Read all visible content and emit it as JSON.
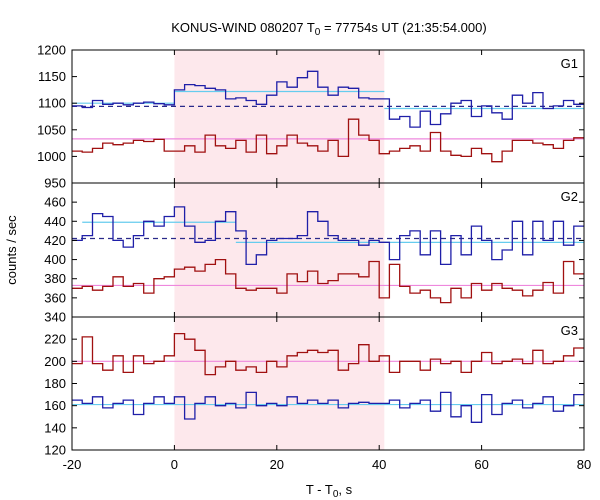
{
  "chart_data": {
    "type": "line",
    "title": "KONUS-WIND 080207 T",
    "title_sub": "0",
    "title_rest": " = 77754s UT (21:35:54.000)",
    "xlabel": "T - T",
    "xlabel_sub": "0",
    "xlabel_rest": ", s",
    "ylabel": "counts / sec",
    "xlim": [
      -20,
      80
    ],
    "x_ticks": [
      -20,
      0,
      20,
      40,
      60,
      80
    ],
    "highlight_interval": [
      0,
      41
    ],
    "highlight_color": "#fde8ec",
    "colors": {
      "blue": "#1f1fa8",
      "red": "#a01010",
      "cyan": "#66ccee",
      "pink": "#ee88dd",
      "dashed": "#2a2a8a"
    },
    "bin_edges": [
      -20,
      -18,
      -16,
      -14,
      -12,
      -10,
      -8,
      -6,
      -4,
      -2,
      0,
      2,
      4,
      6,
      8,
      10,
      12,
      14,
      16,
      18,
      20,
      22,
      24,
      26,
      28,
      30,
      32,
      34,
      36,
      38,
      40,
      42,
      44,
      46,
      48,
      50,
      52,
      54,
      56,
      58,
      60,
      62,
      64,
      66,
      68,
      70,
      72,
      74,
      76,
      78,
      80
    ],
    "panels": [
      {
        "label": "G1",
        "ylim": [
          950,
          1200
        ],
        "y_ticks": [
          950,
          1000,
          1050,
          1100,
          1150,
          1200
        ],
        "series": [
          {
            "color": "blue",
            "values": [
              1095,
              1092,
              1105,
              1098,
              1100,
              1097,
              1100,
              1102,
              1099,
              1097,
              1125,
              1135,
              1133,
              1128,
              1125,
              1108,
              1110,
              1105,
              1098,
              1115,
              1140,
              1130,
              1148,
              1160,
              1130,
              1115,
              1130,
              1128,
              1110,
              1108,
              1108,
              1070,
              1075,
              1055,
              1085,
              1060,
              1080,
              1100,
              1105,
              1075,
              1095,
              1082,
              1070,
              1115,
              1100,
              1120,
              1090,
              1095,
              1105,
              1098
            ]
          },
          {
            "color": "red",
            "values": [
              1010,
              1008,
              1015,
              1025,
              1022,
              1025,
              1030,
              1028,
              1032,
              1010,
              1010,
              1020,
              1008,
              1040,
              1020,
              1015,
              1030,
              1008,
              1040,
              1005,
              1020,
              1040,
              1025,
              1020,
              1010,
              1030,
              1000,
              1070,
              1040,
              1030,
              1005,
              1010,
              1015,
              1020,
              1010,
              1045,
              1010,
              1002,
              1000,
              1015,
              1005,
              990,
              1010,
              1030,
              1030,
              1025,
              1022,
              1015,
              1030,
              1035
            ]
          }
        ],
        "fits": [
          {
            "color": "cyan",
            "segments": [
              [
                -20,
                0,
                1100
              ],
              [
                0,
                41,
                1122
              ],
              [
                41,
                80,
                1090
              ]
            ]
          },
          {
            "color": "pink",
            "segments": [
              [
                -20,
                80,
                1033
              ]
            ]
          }
        ],
        "baseline": {
          "color": "dashed",
          "x": [
            -20,
            80
          ],
          "y": 1094
        }
      },
      {
        "label": "G2",
        "ylim": [
          340,
          480
        ],
        "y_ticks": [
          340,
          360,
          380,
          400,
          420,
          440,
          460
        ],
        "series": [
          {
            "color": "blue",
            "values": [
              420,
              425,
              448,
              445,
              420,
              413,
              425,
              440,
              435,
              445,
              455,
              435,
              418,
              420,
              440,
              450,
              430,
              395,
              405,
              420,
              422,
              422,
              425,
              450,
              440,
              425,
              420,
              420,
              415,
              420,
              418,
              400,
              425,
              430,
              405,
              430,
              395,
              425,
              405,
              435,
              420,
              400,
              410,
              440,
              405,
              440,
              420,
              440,
              415,
              435
            ]
          },
          {
            "color": "red",
            "values": [
              370,
              372,
              368,
              372,
              382,
              372,
              375,
              365,
              380,
              382,
              390,
              392,
              388,
              395,
              400,
              385,
              370,
              368,
              370,
              370,
              365,
              385,
              377,
              388,
              375,
              378,
              385,
              385,
              382,
              398,
              360,
              395,
              372,
              365,
              368,
              360,
              355,
              370,
              360,
              375,
              368,
              375,
              370,
              368,
              362,
              368,
              376,
              365,
              398,
              385
            ]
          }
        ],
        "fits": [
          {
            "color": "cyan",
            "segments": [
              [
                -18,
                12,
                439
              ],
              [
                12,
                80,
                418
              ]
            ]
          },
          {
            "color": "pink",
            "segments": [
              [
                -20,
                80,
                373
              ]
            ]
          }
        ],
        "baseline": {
          "color": "dashed",
          "x": [
            -20,
            80
          ],
          "y": 422
        }
      },
      {
        "label": "G3",
        "ylim": [
          120,
          240
        ],
        "y_ticks": [
          120,
          140,
          160,
          180,
          200,
          220
        ],
        "series": [
          {
            "color": "blue",
            "values": [
              165,
              162,
              168,
              158,
              162,
              165,
              152,
              162,
              168,
              162,
              168,
              148,
              162,
              168,
              160,
              162,
              158,
              172,
              160,
              162,
              160,
              168,
              162,
              165,
              162,
              165,
              158,
              162,
              163,
              162,
              162,
              165,
              158,
              162,
              165,
              155,
              172,
              150,
              160,
              145,
              170,
              152,
              162,
              165,
              158,
              162,
              168,
              155,
              160,
              170
            ]
          },
          {
            "color": "red",
            "values": [
              198,
              222,
              198,
              192,
              205,
              190,
              205,
              198,
              200,
              205,
              225,
              220,
              210,
              188,
              195,
              200,
              192,
              195,
              190,
              200,
              195,
              205,
              208,
              210,
              208,
              210,
              192,
              198,
              215,
              200,
              205,
              190,
              200,
              200,
              192,
              202,
              198,
              200,
              190,
              200,
              208,
              198,
              200,
              202,
              198,
              210,
              198,
              200,
              205,
              212
            ]
          }
        ],
        "fits": [
          {
            "color": "cyan",
            "segments": [
              [
                -20,
                80,
                161
              ]
            ]
          },
          {
            "color": "pink",
            "segments": [
              [
                -20,
                80,
                200
              ]
            ]
          }
        ]
      }
    ]
  }
}
